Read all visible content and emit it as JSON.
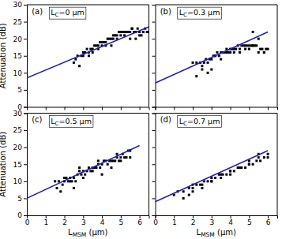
{
  "chart_data": [
    {
      "type": "scatter",
      "title": "(a)",
      "annotations": [
        "LC=0 μm"
      ],
      "y_label": "Attenuation (dB)",
      "tick_labels": "y",
      "xlim": [
        0,
        6.5
      ],
      "ylim": [
        0,
        30
      ],
      "xticks": [
        0,
        1,
        2,
        3,
        4,
        5,
        6
      ],
      "yticks": [
        0,
        5,
        10,
        15,
        20,
        25,
        30
      ],
      "series": [
        {
          "type": "scatter",
          "marker": "square",
          "color": "black",
          "x": [
            2.5,
            2.7,
            2.9,
            3.0,
            3.1,
            3.2,
            3.3,
            3.4,
            3.5,
            3.6,
            3.7,
            3.8,
            3.9,
            4.0,
            4.1,
            4.2,
            4.3,
            4.4,
            4.5,
            4.6,
            4.7,
            4.8,
            4.9,
            5.0,
            5.1,
            5.2,
            5.3,
            5.4,
            5.5,
            5.6,
            5.7,
            5.8,
            5.9,
            6.0,
            6.1,
            6.2,
            6.3,
            6.4,
            6.5,
            3.3,
            3.8,
            4.2,
            4.8,
            5.2,
            5.8,
            6.0,
            2.8,
            3.5,
            4.5,
            5.5,
            5.0,
            4.0,
            3.0,
            2.6,
            4.6,
            5.6,
            6.2
          ],
          "values": [
            13,
            15,
            15,
            16,
            16,
            17,
            16,
            17,
            17,
            18,
            18,
            18,
            19,
            18,
            19,
            19,
            20,
            20,
            20,
            20,
            21,
            21,
            22,
            21,
            22,
            22,
            22,
            22,
            22,
            23,
            22,
            22,
            23,
            22,
            21,
            22,
            23,
            22,
            22,
            15,
            17,
            18,
            20,
            21,
            20,
            21,
            12,
            16,
            18,
            20,
            22,
            19,
            15,
            14,
            21,
            23,
            22
          ]
        },
        {
          "type": "line",
          "color": "#2020bb",
          "x": [
            0,
            6.5
          ],
          "values": [
            8.5,
            23.5
          ]
        }
      ]
    },
    {
      "type": "scatter",
      "title": "(b)",
      "annotations": [
        "LC=0.3 μm"
      ],
      "tick_labels": false,
      "xlim": [
        0,
        6.5
      ],
      "ylim": [
        0,
        30
      ],
      "xticks": [
        0,
        1,
        2,
        3,
        4,
        5,
        6
      ],
      "yticks": [
        0,
        5,
        10,
        15,
        20,
        25,
        30
      ],
      "series": [
        {
          "type": "scatter",
          "marker": "square",
          "color": "black",
          "x": [
            2.0,
            2.2,
            2.4,
            2.5,
            2.6,
            2.7,
            2.8,
            2.9,
            3.0,
            3.1,
            3.2,
            3.3,
            3.4,
            3.5,
            3.6,
            3.7,
            3.8,
            3.9,
            4.0,
            4.1,
            4.2,
            4.3,
            4.4,
            4.5,
            4.6,
            4.7,
            4.8,
            4.9,
            5.0,
            5.1,
            5.2,
            5.3,
            5.4,
            5.5,
            5.6,
            5.7,
            5.8,
            5.9,
            6.0,
            2.5,
            3.0,
            3.5,
            4.0,
            4.5,
            5.0,
            5.5,
            2.2,
            2.8,
            3.8,
            4.8,
            5.2,
            5.8,
            3.2,
            4.2,
            5.2
          ],
          "values": [
            13,
            13,
            13,
            12,
            13,
            14,
            13,
            14,
            14,
            15,
            15,
            16,
            15,
            16,
            16,
            16,
            17,
            16,
            17,
            17,
            17,
            17,
            18,
            17,
            18,
            18,
            18,
            18,
            18,
            18,
            18,
            18,
            18,
            16,
            17,
            17,
            16,
            17,
            17,
            11,
            11,
            14,
            16,
            16,
            17,
            20,
            9,
            10,
            16,
            17,
            18,
            16,
            15,
            16,
            22
          ]
        },
        {
          "type": "line",
          "color": "#2020bb",
          "x": [
            0,
            6.0
          ],
          "values": [
            7.0,
            22.0
          ]
        }
      ]
    },
    {
      "type": "scatter",
      "title": "(c)",
      "annotations": [
        "LC=0.5 μm"
      ],
      "x_label": "LMSM (μm)",
      "y_label": "Attenuation (dB)",
      "xlim": [
        0,
        6.5
      ],
      "ylim": [
        0,
        30
      ],
      "xticks": [
        0,
        1,
        2,
        3,
        4,
        5,
        6
      ],
      "yticks": [
        0,
        5,
        10,
        15,
        20,
        25,
        30
      ],
      "series": [
        {
          "type": "scatter",
          "marker": "square",
          "color": "black",
          "x": [
            1.5,
            1.7,
            1.9,
            2.0,
            2.1,
            2.2,
            2.3,
            2.4,
            2.5,
            2.6,
            2.7,
            2.8,
            2.9,
            3.0,
            3.1,
            3.2,
            3.3,
            3.4,
            3.5,
            3.6,
            3.7,
            3.8,
            3.9,
            4.0,
            4.1,
            4.2,
            4.3,
            4.4,
            4.5,
            4.6,
            4.7,
            4.8,
            4.9,
            5.0,
            5.1,
            5.2,
            5.3,
            5.4,
            5.5,
            1.8,
            2.5,
            3.0,
            3.5,
            4.0,
            4.5,
            5.0,
            5.5,
            2.0,
            2.8,
            3.8,
            4.8,
            1.6,
            2.3
          ],
          "values": [
            10,
            10,
            9,
            10,
            11,
            10,
            11,
            10,
            11,
            10,
            12,
            13,
            12,
            13,
            12,
            13,
            14,
            13,
            14,
            14,
            14,
            15,
            14,
            15,
            16,
            16,
            15,
            16,
            16,
            16,
            16,
            17,
            16,
            17,
            18,
            17,
            17,
            19,
            19,
            7,
            8,
            11,
            13,
            12,
            14,
            16,
            17,
            11,
            14,
            16,
            18,
            8,
            10
          ]
        },
        {
          "type": "line",
          "color": "#2020bb",
          "x": [
            0,
            6.0
          ],
          "values": [
            5.0,
            20.5
          ]
        }
      ]
    },
    {
      "type": "scatter",
      "title": "(d)",
      "annotations": [
        "LC=0.7 μm"
      ],
      "x_label": "LMSM (μm)",
      "tick_labels": "x",
      "xlim": [
        0,
        6.5
      ],
      "ylim": [
        0,
        30
      ],
      "xticks": [
        0,
        1,
        2,
        3,
        4,
        5,
        6
      ],
      "yticks": [
        0,
        5,
        10,
        15,
        20,
        25,
        30
      ],
      "series": [
        {
          "type": "scatter",
          "marker": "square",
          "color": "black",
          "x": [
            1.0,
            1.2,
            1.5,
            1.8,
            2.0,
            2.2,
            2.4,
            2.6,
            2.8,
            3.0,
            3.2,
            3.4,
            3.6,
            3.8,
            4.0,
            4.2,
            4.4,
            4.6,
            4.8,
            5.0,
            5.2,
            5.4,
            5.6,
            5.8,
            6.0,
            1.5,
            2.0,
            2.5,
            3.0,
            3.5,
            4.0,
            4.5,
            5.0,
            5.5,
            2.0,
            3.0,
            4.0,
            5.0,
            6.0,
            1.8,
            2.5,
            3.5,
            4.5,
            5.5
          ],
          "values": [
            6,
            7,
            7,
            8,
            8,
            9,
            9,
            10,
            10,
            10,
            11,
            12,
            12,
            12,
            13,
            13,
            14,
            14,
            14,
            15,
            15,
            16,
            16,
            17,
            17,
            5,
            7,
            9,
            10,
            12,
            12,
            14,
            15,
            17,
            9,
            11,
            13,
            16,
            18,
            6,
            8,
            11,
            14,
            18
          ]
        },
        {
          "type": "line",
          "color": "#2020bb",
          "x": [
            0,
            6.0
          ],
          "values": [
            4.0,
            19.0
          ]
        }
      ]
    }
  ]
}
